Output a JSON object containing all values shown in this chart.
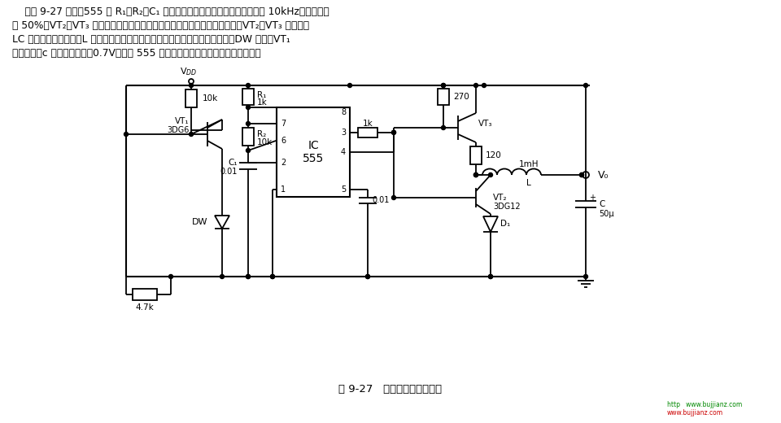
{
  "bg_color": "#ffffff",
  "line_color": "#000000",
  "fig_width": 9.6,
  "fig_height": 5.2,
  "title_text": "图 9-27   感性开关式电源电路",
  "desc": [
    "    如图 9-27 所示，555 和 R₁、R₂、C₁ 组成无稳态多谐振荡器，振荡频率约在 10kHz，占空比接",
    "近 50%。VT₂、VT₃ 作为扩大电流用的开关管使用。当振荡方波为高电平时，VT₂、VT₃ 导通，向",
    "LC 放电；为低电平时，L 中的储能通过续流二极管回路向负载供电。当过压时，DW 击穿，VT₁",
    "饱和导通，c 极呼低电平（＜0.7V），使 555 复位、停振，起稳压和动态平衡作用。"
  ]
}
